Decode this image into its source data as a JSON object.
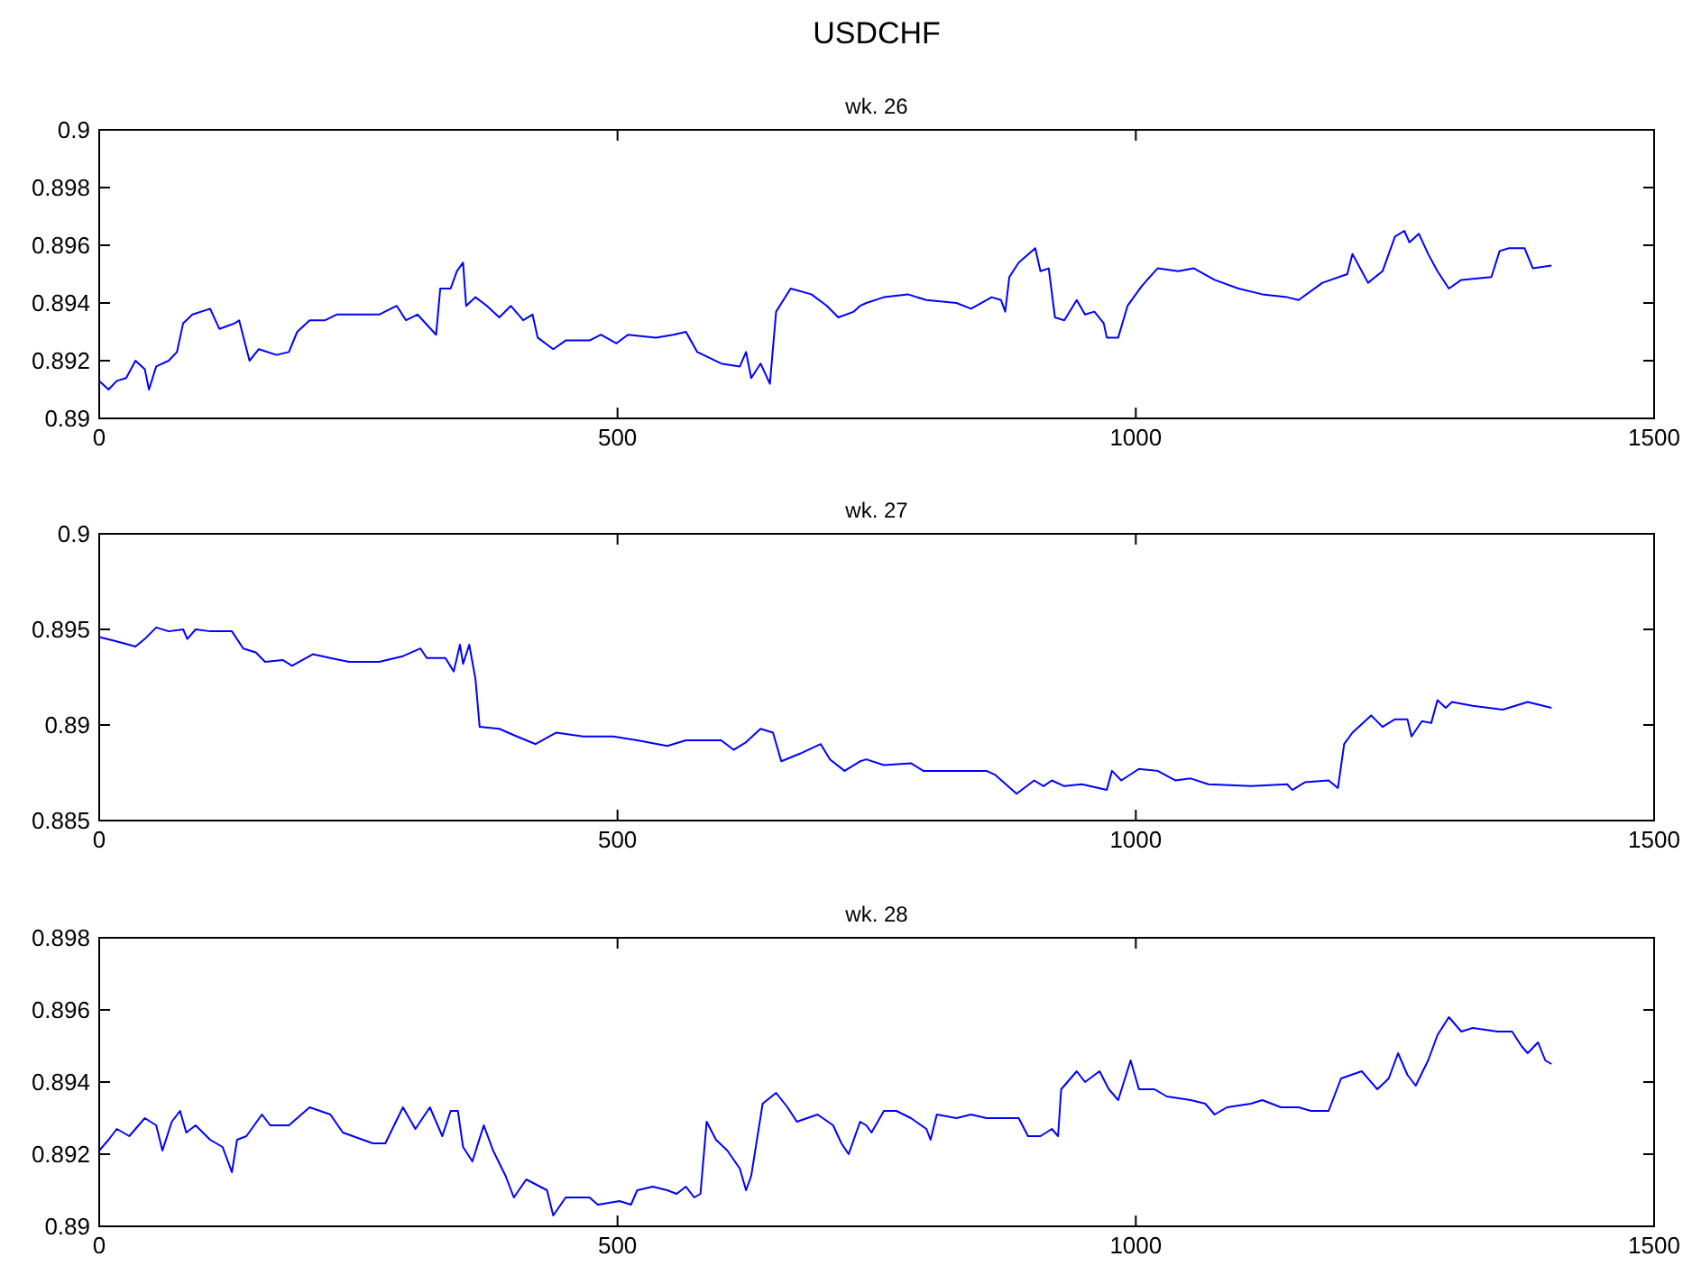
{
  "chart_data": [
    {
      "type": "line",
      "title": "USDCHF",
      "subtitle": "wk. 26",
      "xlim": [
        0,
        1500
      ],
      "xticks": [
        0,
        500,
        1000,
        1500
      ],
      "ylim": [
        0.89,
        0.9
      ],
      "yticks": [
        0.89,
        0.892,
        0.894,
        0.896,
        0.898,
        0.9
      ],
      "series": [
        {
          "color": "#0000ff",
          "x": [
            0,
            9,
            17,
            26,
            35,
            44,
            48,
            55,
            67,
            75,
            81,
            90,
            107,
            116,
            131,
            135,
            145,
            154,
            171,
            183,
            191,
            203,
            218,
            229,
            247,
            270,
            287,
            296,
            307,
            325,
            329,
            339,
            345,
            351,
            354,
            363,
            374,
            386,
            397,
            409,
            418,
            423,
            438,
            450,
            473,
            484,
            499,
            510,
            537,
            554,
            566,
            577,
            600,
            618,
            624,
            629,
            638,
            647,
            653,
            667,
            687,
            702,
            713,
            728,
            734,
            740,
            757,
            780,
            798,
            827,
            841,
            861,
            870,
            874,
            878,
            887,
            903,
            908,
            916,
            922,
            931,
            943,
            951,
            960,
            969,
            972,
            983,
            992,
            1006,
            1021,
            1041,
            1056,
            1076,
            1099,
            1122,
            1146,
            1157,
            1180,
            1204,
            1209,
            1218,
            1224,
            1238,
            1250,
            1259,
            1264,
            1273,
            1282,
            1291,
            1302,
            1314,
            1343,
            1351,
            1360,
            1375,
            1383,
            1401
          ],
          "values": [
            0.8913,
            0.891,
            0.8913,
            0.8914,
            0.892,
            0.8917,
            0.891,
            0.8918,
            0.892,
            0.8923,
            0.8933,
            0.8936,
            0.8938,
            0.8931,
            0.8933,
            0.8934,
            0.892,
            0.8924,
            0.8922,
            0.8923,
            0.893,
            0.8934,
            0.8934,
            0.8936,
            0.8936,
            0.8936,
            0.8939,
            0.8934,
            0.8936,
            0.8929,
            0.8945,
            0.8945,
            0.8951,
            0.8954,
            0.8939,
            0.8942,
            0.8939,
            0.8935,
            0.8939,
            0.8934,
            0.8936,
            0.8928,
            0.8924,
            0.8927,
            0.8927,
            0.8929,
            0.8926,
            0.8929,
            0.8928,
            0.8929,
            0.893,
            0.8923,
            0.8919,
            0.8918,
            0.8923,
            0.8914,
            0.8919,
            0.8912,
            0.8937,
            0.8945,
            0.8943,
            0.8939,
            0.8935,
            0.8937,
            0.8939,
            0.894,
            0.8942,
            0.8943,
            0.8941,
            0.894,
            0.8938,
            0.8942,
            0.8941,
            0.8937,
            0.8949,
            0.8954,
            0.8959,
            0.8951,
            0.8952,
            0.8935,
            0.8934,
            0.8941,
            0.8936,
            0.8937,
            0.8933,
            0.8928,
            0.8928,
            0.8939,
            0.8946,
            0.8952,
            0.8951,
            0.8952,
            0.8948,
            0.8945,
            0.8943,
            0.8942,
            0.8941,
            0.8947,
            0.895,
            0.8957,
            0.8951,
            0.8947,
            0.8951,
            0.8963,
            0.8965,
            0.8961,
            0.8964,
            0.8957,
            0.8951,
            0.8945,
            0.8948,
            0.8949,
            0.8958,
            0.8959,
            0.8959,
            0.8952,
            0.8953
          ]
        }
      ]
    },
    {
      "type": "line",
      "title": "wk. 27",
      "xlim": [
        0,
        1500
      ],
      "xticks": [
        0,
        500,
        1000,
        1500
      ],
      "ylim": [
        0.885,
        0.9
      ],
      "yticks": [
        0.885,
        0.89,
        0.895,
        0.9
      ],
      "series": [
        {
          "color": "#0000ff",
          "x": [
            0,
            15,
            35,
            44,
            55,
            67,
            81,
            85,
            93,
            107,
            128,
            139,
            151,
            160,
            177,
            186,
            206,
            223,
            241,
            270,
            293,
            310,
            316,
            334,
            342,
            348,
            351,
            357,
            363,
            367,
            386,
            403,
            421,
            441,
            467,
            496,
            519,
            548,
            566,
            600,
            612,
            624,
            638,
            650,
            658,
            676,
            696,
            705,
            719,
            734,
            740,
            757,
            783,
            795,
            827,
            856,
            864,
            885,
            902,
            911,
            919,
            931,
            948,
            972,
            977,
            986,
            1003,
            1021,
            1038,
            1053,
            1070,
            1111,
            1146,
            1151,
            1163,
            1186,
            1195,
            1201,
            1209,
            1227,
            1238,
            1250,
            1262,
            1266,
            1276,
            1285,
            1291,
            1299,
            1305,
            1325,
            1354,
            1378,
            1401
          ],
          "values": [
            0.8946,
            0.8944,
            0.8941,
            0.8945,
            0.8951,
            0.8949,
            0.895,
            0.8945,
            0.895,
            0.8949,
            0.8949,
            0.894,
            0.8938,
            0.8933,
            0.8934,
            0.8931,
            0.8937,
            0.8935,
            0.8933,
            0.8933,
            0.8936,
            0.894,
            0.8935,
            0.8935,
            0.8928,
            0.8942,
            0.8932,
            0.8942,
            0.8924,
            0.8899,
            0.8898,
            0.8894,
            0.889,
            0.8896,
            0.8894,
            0.8894,
            0.8892,
            0.8889,
            0.8892,
            0.8892,
            0.8887,
            0.8891,
            0.8898,
            0.8896,
            0.8881,
            0.8885,
            0.889,
            0.8882,
            0.8876,
            0.8881,
            0.8882,
            0.8879,
            0.888,
            0.8876,
            0.8876,
            0.8876,
            0.8874,
            0.8864,
            0.8871,
            0.8868,
            0.8871,
            0.8868,
            0.8869,
            0.8866,
            0.8876,
            0.8871,
            0.8877,
            0.8876,
            0.8871,
            0.8872,
            0.8869,
            0.8868,
            0.8869,
            0.8866,
            0.887,
            0.8871,
            0.8867,
            0.889,
            0.8896,
            0.8905,
            0.8899,
            0.8903,
            0.8903,
            0.8894,
            0.8902,
            0.8901,
            0.8913,
            0.8909,
            0.8912,
            0.891,
            0.8908,
            0.8912,
            0.8909
          ]
        }
      ]
    },
    {
      "type": "line",
      "title": "wk. 28",
      "xlim": [
        0,
        1500
      ],
      "xticks": [
        0,
        500,
        1000,
        1500
      ],
      "ylim": [
        0.89,
        0.898
      ],
      "yticks": [
        0.89,
        0.892,
        0.894,
        0.896,
        0.898
      ],
      "series": [
        {
          "color": "#0000ff",
          "x": [
            0,
            9,
            17,
            29,
            44,
            55,
            61,
            70,
            78,
            84,
            93,
            107,
            119,
            128,
            133,
            142,
            157,
            165,
            183,
            203,
            223,
            235,
            264,
            276,
            293,
            305,
            319,
            331,
            339,
            346,
            351,
            360,
            371,
            380,
            392,
            400,
            412,
            432,
            438,
            450,
            473,
            481,
            502,
            513,
            519,
            534,
            548,
            557,
            566,
            574,
            580,
            586,
            595,
            606,
            618,
            624,
            629,
            640,
            653,
            664,
            673,
            693,
            708,
            716,
            723,
            734,
            740,
            745,
            757,
            769,
            783,
            798,
            802,
            808,
            827,
            841,
            856,
            879,
            887,
            896,
            908,
            919,
            925,
            928,
            943,
            951,
            965,
            974,
            983,
            995,
            1003,
            1018,
            1030,
            1053,
            1067,
            1076,
            1088,
            1111,
            1122,
            1140,
            1157,
            1169,
            1186,
            1198,
            1218,
            1233,
            1244,
            1253,
            1262,
            1270,
            1282,
            1291,
            1302,
            1314,
            1325,
            1349,
            1363,
            1372,
            1378,
            1388,
            1395,
            1401
          ],
          "values": [
            0.8921,
            0.8924,
            0.8927,
            0.8925,
            0.893,
            0.8928,
            0.8921,
            0.8929,
            0.8932,
            0.8926,
            0.8928,
            0.8924,
            0.8922,
            0.8915,
            0.8924,
            0.8925,
            0.8931,
            0.8928,
            0.8928,
            0.8933,
            0.8931,
            0.8926,
            0.8923,
            0.8923,
            0.8933,
            0.8927,
            0.8933,
            0.8925,
            0.8932,
            0.8932,
            0.8922,
            0.8918,
            0.8928,
            0.8921,
            0.8914,
            0.8908,
            0.8913,
            0.891,
            0.8903,
            0.8908,
            0.8908,
            0.8906,
            0.8907,
            0.8906,
            0.891,
            0.8911,
            0.891,
            0.8909,
            0.8911,
            0.8908,
            0.8909,
            0.8929,
            0.8924,
            0.8921,
            0.8916,
            0.891,
            0.8914,
            0.8934,
            0.8937,
            0.8933,
            0.8929,
            0.8931,
            0.8928,
            0.8923,
            0.892,
            0.8929,
            0.8928,
            0.8926,
            0.8932,
            0.8932,
            0.893,
            0.8927,
            0.8924,
            0.8931,
            0.893,
            0.8931,
            0.893,
            0.893,
            0.893,
            0.8925,
            0.8925,
            0.8927,
            0.8925,
            0.8938,
            0.8943,
            0.894,
            0.8943,
            0.8938,
            0.8935,
            0.8946,
            0.8938,
            0.8938,
            0.8936,
            0.8935,
            0.8934,
            0.8931,
            0.8933,
            0.8934,
            0.8935,
            0.8933,
            0.8933,
            0.8932,
            0.8932,
            0.8941,
            0.8943,
            0.8938,
            0.8941,
            0.8948,
            0.8942,
            0.8939,
            0.8946,
            0.8953,
            0.8958,
            0.8954,
            0.8955,
            0.8954,
            0.8954,
            0.895,
            0.8948,
            0.8951,
            0.8946,
            0.8945
          ]
        }
      ]
    }
  ]
}
